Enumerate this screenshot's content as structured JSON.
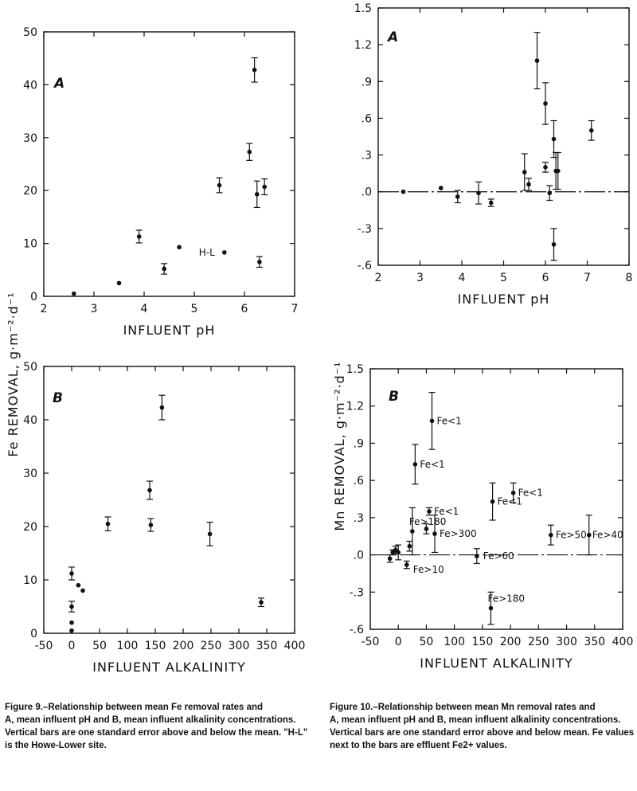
{
  "figure9": {
    "caption_title": "Figure 9.–Relationship between mean Fe removal rates and",
    "caption_body": "A, mean influent pH and B, mean influent alkalinity concentrations. Vertical bars are one standard error above and below the mean. \"H-L\" is the Howe-Lower site."
  },
  "figure10": {
    "caption_title": "Figure 10.–Relationship between mean Mn removal rates and",
    "caption_body": "A, mean influent pH and B, mean influent alkalinity concentrations. Vertical bars are one standard error above and below mean. Fe values next to the bars are effluent Fe2+ values."
  },
  "chart_data": [
    {
      "id": "fe-ph",
      "type": "scatter",
      "panel_label": "A",
      "xlabel": "INFLUENT pH",
      "ylabel": "Fe REMOVAL, g·m⁻²·d⁻¹",
      "xlim": [
        2,
        7
      ],
      "ylim": [
        0,
        50
      ],
      "xticks": [
        2,
        3,
        4,
        5,
        6,
        7
      ],
      "yticks": [
        0,
        10,
        20,
        30,
        40,
        50
      ],
      "grid": false,
      "points": [
        {
          "x": 2.6,
          "y": 0.5,
          "err": 0
        },
        {
          "x": 3.5,
          "y": 2.5,
          "err": 0
        },
        {
          "x": 3.9,
          "y": 11.3,
          "err": 1.2
        },
        {
          "x": 4.4,
          "y": 5.2,
          "err": 1.0
        },
        {
          "x": 4.7,
          "y": 9.3,
          "err": 0
        },
        {
          "x": 5.5,
          "y": 21.0,
          "err": 1.4
        },
        {
          "x": 5.6,
          "y": 8.3,
          "err": 0,
          "label": "H-L"
        },
        {
          "x": 6.1,
          "y": 27.3,
          "err": 1.6
        },
        {
          "x": 6.2,
          "y": 42.8,
          "err": 2.3
        },
        {
          "x": 6.25,
          "y": 19.3,
          "err": 2.5
        },
        {
          "x": 6.3,
          "y": 6.5,
          "err": 1.0
        },
        {
          "x": 6.4,
          "y": 20.7,
          "err": 1.5
        }
      ]
    },
    {
      "id": "mn-ph",
      "type": "scatter",
      "panel_label": "A",
      "xlabel": "INFLUENT pH",
      "ylabel": "",
      "xlim": [
        2,
        8
      ],
      "ylim": [
        -0.6,
        1.5
      ],
      "xticks": [
        2,
        3,
        4,
        5,
        6,
        7,
        8
      ],
      "yticks": [
        -0.6,
        -0.3,
        0.0,
        0.3,
        0.6,
        0.9,
        1.2,
        1.5
      ],
      "ytick_labels": [
        "-.6",
        "-.3",
        ".0",
        ".3",
        ".6",
        ".9",
        "1.2",
        "1.5"
      ],
      "zero_line": true,
      "grid": false,
      "points": [
        {
          "x": 2.6,
          "y": 0.0,
          "err": 0
        },
        {
          "x": 3.5,
          "y": 0.03,
          "err": 0
        },
        {
          "x": 3.9,
          "y": -0.04,
          "err": 0.05
        },
        {
          "x": 4.4,
          "y": -0.01,
          "err": 0.09
        },
        {
          "x": 4.7,
          "y": -0.09,
          "err": 0.03
        },
        {
          "x": 5.5,
          "y": 0.16,
          "err": 0.15
        },
        {
          "x": 5.6,
          "y": 0.06,
          "err": 0.05
        },
        {
          "x": 5.8,
          "y": 1.07,
          "err": 0.23
        },
        {
          "x": 6.0,
          "y": 0.72,
          "err": 0.17
        },
        {
          "x": 6.0,
          "y": 0.2,
          "err": 0.04
        },
        {
          "x": 6.1,
          "y": -0.01,
          "err": 0.06
        },
        {
          "x": 6.2,
          "y": 0.43,
          "err": 0.15
        },
        {
          "x": 6.2,
          "y": -0.43,
          "err": 0.13
        },
        {
          "x": 6.25,
          "y": 0.17,
          "err": 0.15
        },
        {
          "x": 6.3,
          "y": 0.17,
          "err": 0.15
        },
        {
          "x": 7.1,
          "y": 0.5,
          "err": 0.08
        }
      ]
    },
    {
      "id": "fe-alk",
      "type": "scatter",
      "panel_label": "B",
      "xlabel": "INFLUENT ALKALINITY",
      "ylabel": "",
      "xlim": [
        -50,
        400
      ],
      "ylim": [
        0,
        50
      ],
      "xticks": [
        -50,
        0,
        50,
        100,
        150,
        200,
        250,
        300,
        350,
        400
      ],
      "yticks": [
        0,
        10,
        20,
        30,
        40,
        50
      ],
      "grid": false,
      "points": [
        {
          "x": 0,
          "y": 0.5,
          "err": 0
        },
        {
          "x": 0,
          "y": 2.0,
          "err": 0
        },
        {
          "x": 0,
          "y": 5.0,
          "err": 1.0
        },
        {
          "x": 0,
          "y": 11.2,
          "err": 1.2
        },
        {
          "x": 12,
          "y": 9.0,
          "err": 0
        },
        {
          "x": 20,
          "y": 8.0,
          "err": 0
        },
        {
          "x": 65,
          "y": 20.5,
          "err": 1.3
        },
        {
          "x": 140,
          "y": 26.8,
          "err": 1.7
        },
        {
          "x": 142,
          "y": 20.3,
          "err": 1.2
        },
        {
          "x": 162,
          "y": 42.3,
          "err": 2.3
        },
        {
          "x": 248,
          "y": 18.6,
          "err": 2.2
        },
        {
          "x": 340,
          "y": 5.8,
          "err": 0.8
        }
      ]
    },
    {
      "id": "mn-alk",
      "type": "scatter",
      "panel_label": "B",
      "xlabel": "INFLUENT ALKALINITY",
      "ylabel": "Mn REMOVAL, g·m⁻²·d⁻¹",
      "xlim": [
        -50,
        400
      ],
      "ylim": [
        -0.6,
        1.5
      ],
      "xticks": [
        -50,
        0,
        50,
        100,
        150,
        200,
        250,
        300,
        350,
        400
      ],
      "yticks": [
        -0.6,
        -0.3,
        0.0,
        0.3,
        0.6,
        0.9,
        1.2,
        1.5
      ],
      "ytick_labels": [
        "-.6",
        "-.3",
        ".0",
        ".3",
        ".6",
        ".9",
        "1.2",
        "1.5"
      ],
      "zero_line": true,
      "grid": false,
      "points": [
        {
          "x": -15,
          "y": -0.03,
          "err": 0.03
        },
        {
          "x": -10,
          "y": 0.02,
          "err": 0.02
        },
        {
          "x": -5,
          "y": 0.04,
          "err": 0.03
        },
        {
          "x": 0,
          "y": 0.02,
          "err": 0.06
        },
        {
          "x": 15,
          "y": -0.08,
          "err": 0.03,
          "label": "Fe>10"
        },
        {
          "x": 20,
          "y": 0.07,
          "err": 0.04
        },
        {
          "x": 25,
          "y": 0.19,
          "err": 0.19,
          "label": "Fe>180"
        },
        {
          "x": 30,
          "y": 0.73,
          "err": 0.16,
          "label": "Fe<1"
        },
        {
          "x": 50,
          "y": 0.21,
          "err": 0.04
        },
        {
          "x": 55,
          "y": 0.35,
          "err": 0.03,
          "label": "Fe<1"
        },
        {
          "x": 60,
          "y": 1.08,
          "err": 0.23,
          "label": "Fe<1"
        },
        {
          "x": 65,
          "y": 0.17,
          "err": 0.15,
          "label": "Fe>300"
        },
        {
          "x": 140,
          "y": -0.01,
          "err": 0.06,
          "label": "Fe>60"
        },
        {
          "x": 165,
          "y": -0.43,
          "err": 0.13,
          "label": "Fe>180"
        },
        {
          "x": 168,
          "y": 0.43,
          "err": 0.15,
          "label": "Fe<1"
        },
        {
          "x": 205,
          "y": 0.5,
          "err": 0.08,
          "label": "Fe<1"
        },
        {
          "x": 272,
          "y": 0.16,
          "err": 0.08,
          "label": "Fe>50"
        },
        {
          "x": 340,
          "y": 0.16,
          "err": 0.16,
          "label": "Fe>40"
        }
      ]
    }
  ]
}
